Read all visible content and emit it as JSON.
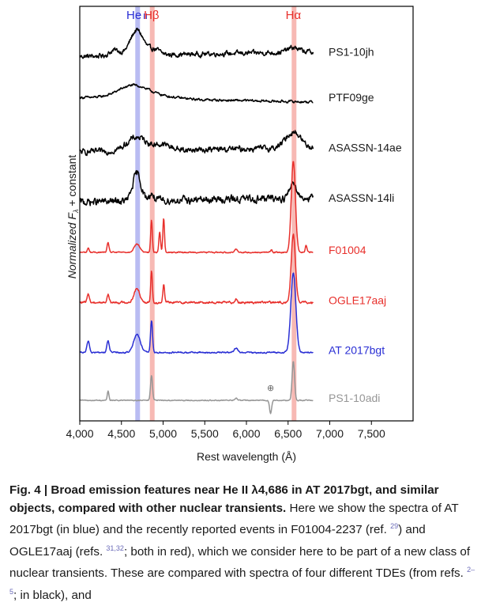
{
  "chart_data": {
    "type": "line",
    "xlabel": "Rest wavelength (Å)",
    "ylabel": "Normalized F_λ + constant",
    "ylabel_main": "Normalized F",
    "ylabel_sub": "λ",
    "ylabel_tail": " + constant",
    "xlim": [
      4000,
      8000
    ],
    "xticks": [
      4000,
      4500,
      5000,
      5500,
      6000,
      6500,
      7000,
      7500
    ],
    "xtick_labels": [
      "4,000",
      "4,500",
      "5,000",
      "5,500",
      "6,000",
      "6,500",
      "7,000",
      "7,500"
    ],
    "wavelength_range": [
      4000,
      6800
    ],
    "bands": [
      {
        "name": "He II",
        "label_main": "He",
        "label_sub": "II",
        "center": 4686,
        "width": 40,
        "color": "#b9bcf2",
        "label_color": "#2a2fd4"
      },
      {
        "name": "Hβ",
        "label_main": "Hβ",
        "label_sub": "",
        "center": 4861,
        "width": 40,
        "color": "#f7b9b4",
        "label_color": "#e8302c"
      },
      {
        "name": "Hα",
        "label_main": "Hα",
        "label_sub": "",
        "center": 6563,
        "width": 40,
        "color": "#f7b9b4",
        "label_color": "#e8302c"
      }
    ],
    "series": [
      {
        "name": "PS1-10jh",
        "color": "#000000",
        "offset": 7.0,
        "noise": 0.1,
        "slope": 0.05,
        "features": [
          [
            4686,
            0.55,
            80
          ],
          [
            4420,
            0.12,
            60
          ],
          [
            4900,
            0.12,
            60
          ],
          [
            6563,
            0.1,
            70
          ]
        ]
      },
      {
        "name": "PTF09ge",
        "color": "#000000",
        "offset": 6.0,
        "noise": 0.05,
        "slope": -0.05,
        "features": [
          [
            4640,
            0.28,
            180
          ],
          [
            5000,
            0.05,
            200
          ]
        ]
      },
      {
        "name": "ASASSN-14ae",
        "color": "#000000",
        "offset": 4.9,
        "noise": 0.12,
        "slope": 0.05,
        "features": [
          [
            4686,
            0.3,
            120
          ],
          [
            5000,
            0.12,
            100
          ],
          [
            6563,
            0.35,
            90
          ]
        ]
      },
      {
        "name": "ASASSN-14li",
        "color": "#000000",
        "offset": 3.8,
        "noise": 0.15,
        "slope": 0.05,
        "features": [
          [
            4686,
            0.6,
            50
          ],
          [
            4860,
            0.15,
            30
          ],
          [
            6563,
            0.35,
            40
          ]
        ]
      },
      {
        "name": "F01004",
        "color": "#e8302c",
        "offset": 2.65,
        "noise": 0.025,
        "slope": 0.0,
        "features": [
          [
            4102,
            0.1,
            10
          ],
          [
            4340,
            0.2,
            12
          ],
          [
            4686,
            0.18,
            35
          ],
          [
            4861,
            0.7,
            10
          ],
          [
            4959,
            0.45,
            10
          ],
          [
            5007,
            0.75,
            10
          ],
          [
            5876,
            0.08,
            15
          ],
          [
            6300,
            0.06,
            10
          ],
          [
            6563,
            2.0,
            25
          ],
          [
            6716,
            0.15,
            10
          ]
        ]
      },
      {
        "name": "OGLE17aaj",
        "color": "#e8302c",
        "offset": 1.55,
        "noise": 0.045,
        "slope": 0.0,
        "features": [
          [
            4102,
            0.2,
            12
          ],
          [
            4340,
            0.18,
            12
          ],
          [
            4686,
            0.3,
            35
          ],
          [
            4861,
            0.7,
            10
          ],
          [
            5007,
            0.4,
            10
          ],
          [
            5876,
            0.08,
            15
          ],
          [
            6563,
            1.5,
            25
          ]
        ]
      },
      {
        "name": "AT 2017bgt",
        "color": "#2a2fd4",
        "offset": 0.45,
        "noise": 0.03,
        "slope": 0.0,
        "features": [
          [
            4102,
            0.25,
            15
          ],
          [
            4340,
            0.25,
            15
          ],
          [
            4686,
            0.4,
            40
          ],
          [
            4861,
            0.7,
            12
          ],
          [
            5876,
            0.1,
            20
          ],
          [
            6563,
            1.75,
            30
          ]
        ]
      },
      {
        "name": "PS1-10adi",
        "color": "#969696",
        "offset": -0.6,
        "noise": 0.02,
        "slope": 0.0,
        "features": [
          [
            4340,
            0.2,
            10
          ],
          [
            4861,
            0.55,
            12
          ],
          [
            5876,
            0.05,
            15
          ],
          [
            6563,
            0.85,
            15
          ],
          [
            6290,
            -0.3,
            12
          ]
        ]
      }
    ],
    "annotation": {
      "symbol": "⊕",
      "x": 6290
    }
  },
  "caption": {
    "head": "Fig. 4 | Broad emission features near He II λ4,686 in AT 2017bgt, and similar objects, compared with other nuclear transients.",
    "body_1": " Here we show the spectra of AT 2017bgt (in blue) and the recently reported events in F01004-2237 (ref. ",
    "ref_1": "29",
    "body_2": ") and OGLE17aaj (refs. ",
    "ref_2": "31,32",
    "body_3": "; both in red), which we consider here to be part of a new class of nuclear transients. These are compared with spectra of four different TDEs (from refs. ",
    "ref_3": "2–5",
    "body_4": "; in black), and"
  }
}
